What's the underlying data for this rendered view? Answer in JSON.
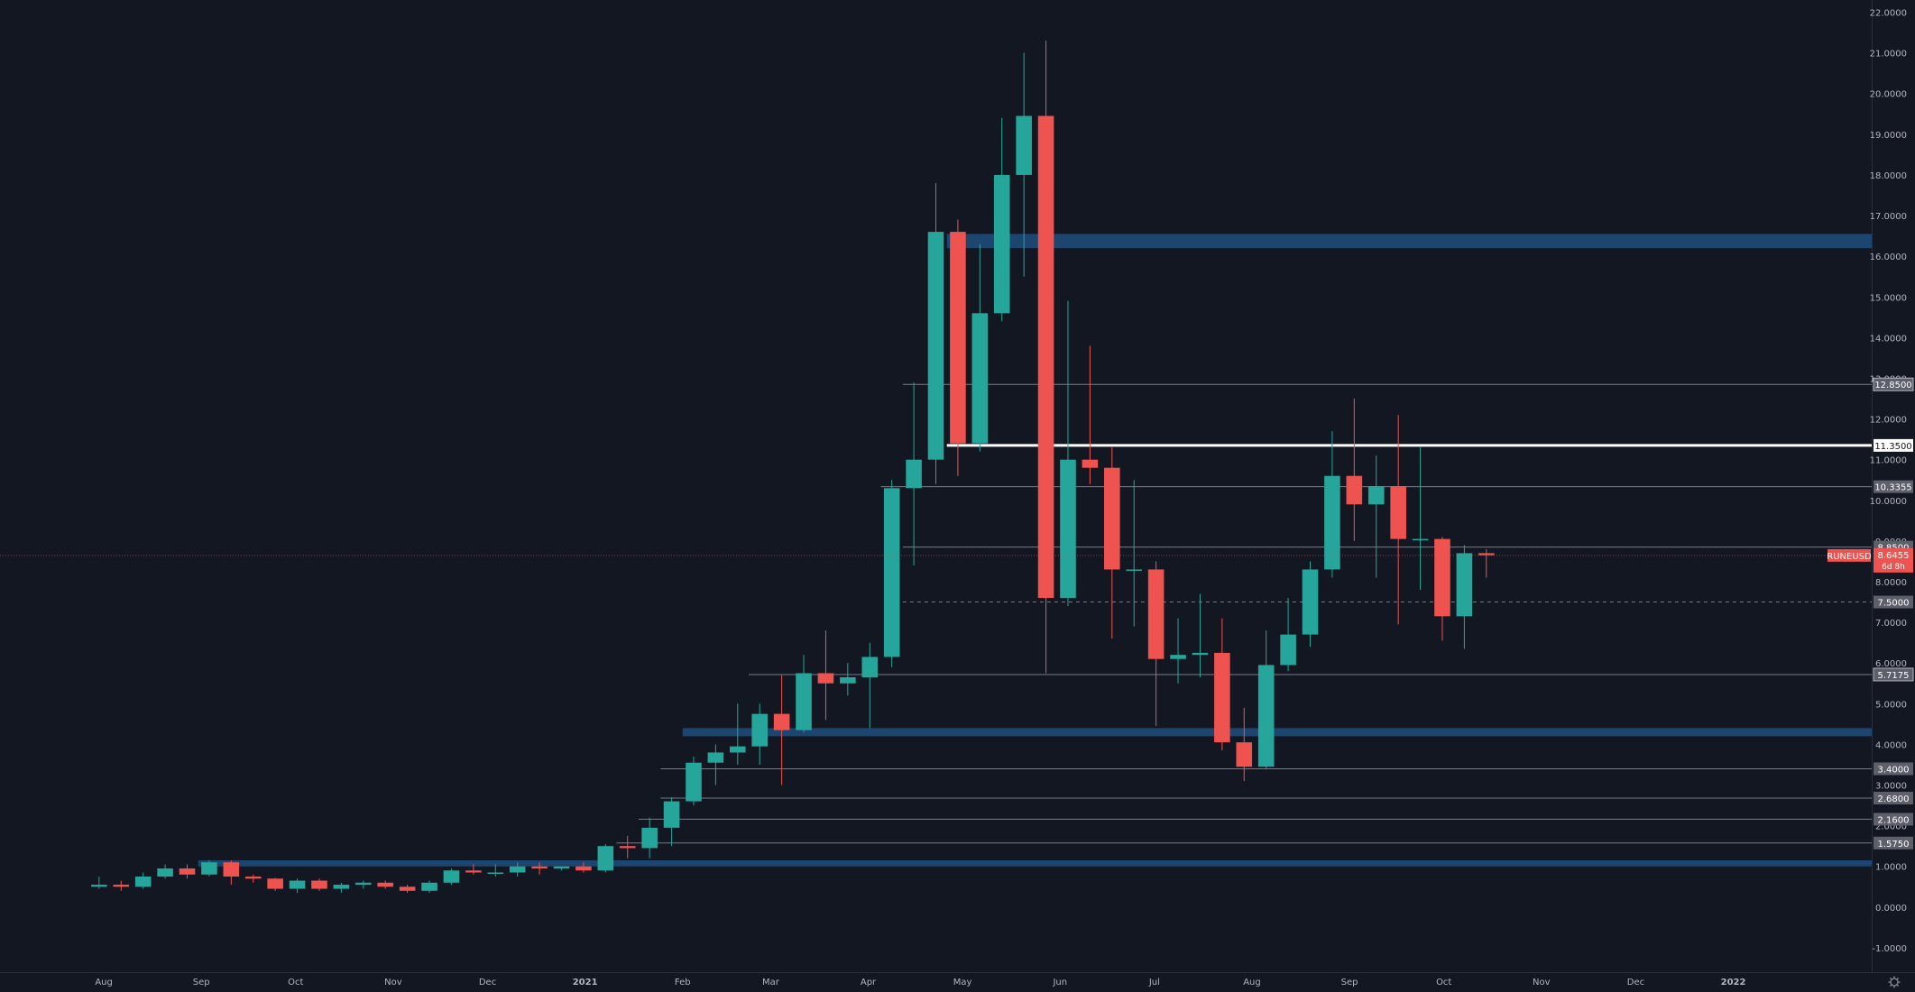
{
  "colors": {
    "background": "#131722",
    "up": "#26a69a",
    "down": "#ef5350",
    "zone": "#1f4e7d",
    "level_line": "#787b86",
    "key_level_line": "#ffffff",
    "axis_text": "#b2b5be",
    "axis_line": "#2a2e39",
    "label_bg": "#5d606b",
    "price_label": "#ef5350"
  },
  "price_axis": {
    "ticks": [
      "22.0000",
      "21.0000",
      "20.0000",
      "19.0000",
      "18.0000",
      "17.0000",
      "16.0000",
      "15.0000",
      "14.0000",
      "13.0000",
      "12.0000",
      "11.0000",
      "10.0000",
      "9.0000",
      "8.0000",
      "7.0000",
      "6.0000",
      "5.0000",
      "4.0000",
      "3.0000",
      "2.0000",
      "1.0000",
      "0.0000",
      "-1.0000"
    ]
  },
  "time_axis": {
    "labels": [
      {
        "text": "Aug",
        "date": "2020-08-01",
        "bold": false
      },
      {
        "text": "Sep",
        "date": "2020-09-01",
        "bold": false
      },
      {
        "text": "Oct",
        "date": "2020-10-01",
        "bold": false
      },
      {
        "text": "Nov",
        "date": "2020-11-01",
        "bold": false
      },
      {
        "text": "Dec",
        "date": "2020-12-01",
        "bold": false
      },
      {
        "text": "2021",
        "date": "2021-01-01",
        "bold": true
      },
      {
        "text": "Feb",
        "date": "2021-02-01",
        "bold": false
      },
      {
        "text": "Mar",
        "date": "2021-03-01",
        "bold": false
      },
      {
        "text": "Apr",
        "date": "2021-04-01",
        "bold": false
      },
      {
        "text": "May",
        "date": "2021-05-01",
        "bold": false
      },
      {
        "text": "Jun",
        "date": "2021-06-01",
        "bold": false
      },
      {
        "text": "Jul",
        "date": "2021-07-01",
        "bold": false
      },
      {
        "text": "Aug",
        "date": "2021-08-01",
        "bold": false
      },
      {
        "text": "Sep",
        "date": "2021-09-01",
        "bold": false
      },
      {
        "text": "Oct",
        "date": "2021-10-01",
        "bold": false
      },
      {
        "text": "Nov",
        "date": "2021-11-01",
        "bold": false
      },
      {
        "text": "Dec",
        "date": "2021-12-01",
        "bold": false
      },
      {
        "text": "2022",
        "date": "2022-01-01",
        "bold": true
      }
    ]
  },
  "current_price": {
    "symbol": "RUNEUSD",
    "price": "8.6455",
    "value": 8.6455,
    "countdown": "6d 8h"
  },
  "chart_data": {
    "type": "candlestick",
    "interval": "weekly",
    "ylim": [
      -1.6,
      22.3
    ],
    "xlim": [
      "2020-06-29",
      "2022-02-14"
    ],
    "candles": [
      {
        "date": "2020-07-27",
        "o": 0.5,
        "h": 0.75,
        "l": 0.45,
        "c": 0.55
      },
      {
        "date": "2020-08-03",
        "o": 0.55,
        "h": 0.65,
        "l": 0.4,
        "c": 0.5
      },
      {
        "date": "2020-08-10",
        "o": 0.5,
        "h": 0.85,
        "l": 0.45,
        "c": 0.75
      },
      {
        "date": "2020-08-17",
        "o": 0.75,
        "h": 1.05,
        "l": 0.7,
        "c": 0.95
      },
      {
        "date": "2020-08-24",
        "o": 0.95,
        "h": 1.05,
        "l": 0.7,
        "c": 0.8
      },
      {
        "date": "2020-08-31",
        "o": 0.8,
        "h": 1.15,
        "l": 0.75,
        "c": 1.1
      },
      {
        "date": "2020-09-07",
        "o": 1.1,
        "h": 1.15,
        "l": 0.55,
        "c": 0.75
      },
      {
        "date": "2020-09-14",
        "o": 0.75,
        "h": 0.8,
        "l": 0.6,
        "c": 0.7
      },
      {
        "date": "2020-09-21",
        "o": 0.7,
        "h": 0.72,
        "l": 0.4,
        "c": 0.45
      },
      {
        "date": "2020-09-28",
        "o": 0.45,
        "h": 0.7,
        "l": 0.35,
        "c": 0.65
      },
      {
        "date": "2020-10-05",
        "o": 0.65,
        "h": 0.7,
        "l": 0.4,
        "c": 0.45
      },
      {
        "date": "2020-10-12",
        "o": 0.45,
        "h": 0.6,
        "l": 0.35,
        "c": 0.55
      },
      {
        "date": "2020-10-19",
        "o": 0.55,
        "h": 0.65,
        "l": 0.45,
        "c": 0.6
      },
      {
        "date": "2020-10-26",
        "o": 0.6,
        "h": 0.65,
        "l": 0.45,
        "c": 0.5
      },
      {
        "date": "2020-11-02",
        "o": 0.5,
        "h": 0.55,
        "l": 0.35,
        "c": 0.4
      },
      {
        "date": "2020-11-09",
        "o": 0.4,
        "h": 0.65,
        "l": 0.35,
        "c": 0.6
      },
      {
        "date": "2020-11-16",
        "o": 0.6,
        "h": 0.95,
        "l": 0.55,
        "c": 0.9
      },
      {
        "date": "2020-11-23",
        "o": 0.9,
        "h": 1.05,
        "l": 0.8,
        "c": 0.85
      },
      {
        "date": "2020-11-30",
        "o": 0.85,
        "h": 1.05,
        "l": 0.75,
        "c": 0.85
      },
      {
        "date": "2020-12-07",
        "o": 0.85,
        "h": 1.1,
        "l": 0.75,
        "c": 1.0
      },
      {
        "date": "2020-12-14",
        "o": 1.0,
        "h": 1.1,
        "l": 0.8,
        "c": 0.95
      },
      {
        "date": "2020-12-21",
        "o": 0.95,
        "h": 1.0,
        "l": 0.9,
        "c": 1.0
      },
      {
        "date": "2020-12-28",
        "o": 1.0,
        "h": 1.1,
        "l": 0.85,
        "c": 0.9
      },
      {
        "date": "2021-01-04",
        "o": 0.9,
        "h": 1.55,
        "l": 0.85,
        "c": 1.5
      },
      {
        "date": "2021-01-11",
        "o": 1.5,
        "h": 1.75,
        "l": 1.2,
        "c": 1.45
      },
      {
        "date": "2021-01-18",
        "o": 1.45,
        "h": 2.2,
        "l": 1.2,
        "c": 1.95
      },
      {
        "date": "2021-01-25",
        "o": 1.95,
        "h": 2.7,
        "l": 1.5,
        "c": 2.6
      },
      {
        "date": "2021-02-01",
        "o": 2.6,
        "h": 3.7,
        "l": 2.5,
        "c": 3.55
      },
      {
        "date": "2021-02-08",
        "o": 3.55,
        "h": 4.0,
        "l": 3.0,
        "c": 3.8
      },
      {
        "date": "2021-02-15",
        "o": 3.8,
        "h": 5.0,
        "l": 3.5,
        "c": 3.95
      },
      {
        "date": "2021-02-22",
        "o": 3.95,
        "h": 5.0,
        "l": 3.5,
        "c": 4.75
      },
      {
        "date": "2021-03-01",
        "o": 4.75,
        "h": 5.7,
        "l": 3.0,
        "c": 4.35
      },
      {
        "date": "2021-03-08",
        "o": 4.35,
        "h": 6.2,
        "l": 4.3,
        "c": 5.75
      },
      {
        "date": "2021-03-15",
        "o": 5.75,
        "h": 6.8,
        "l": 4.6,
        "c": 5.5
      },
      {
        "date": "2021-03-22",
        "o": 5.5,
        "h": 6.0,
        "l": 5.2,
        "c": 5.65
      },
      {
        "date": "2021-03-29",
        "o": 5.65,
        "h": 6.5,
        "l": 4.4,
        "c": 6.15
      },
      {
        "date": "2021-04-05",
        "o": 6.15,
        "h": 10.5,
        "l": 5.9,
        "c": 10.3
      },
      {
        "date": "2021-04-12",
        "o": 10.3,
        "h": 12.9,
        "l": 8.4,
        "c": 11.0
      },
      {
        "date": "2021-04-19",
        "o": 11.0,
        "h": 17.8,
        "l": 10.4,
        "c": 16.6
      },
      {
        "date": "2021-04-26",
        "o": 16.6,
        "h": 16.9,
        "l": 10.6,
        "c": 11.4
      },
      {
        "date": "2021-05-03",
        "o": 11.4,
        "h": 16.3,
        "l": 11.2,
        "c": 14.6
      },
      {
        "date": "2021-05-10",
        "o": 14.6,
        "h": 19.4,
        "l": 14.4,
        "c": 18.0
      },
      {
        "date": "2021-05-17",
        "o": 18.0,
        "h": 21.0,
        "l": 15.5,
        "c": 19.45
      },
      {
        "date": "2021-05-24",
        "o": 19.45,
        "h": 21.3,
        "l": 5.75,
        "c": 7.6
      },
      {
        "date": "2021-05-31",
        "o": 7.6,
        "h": 14.9,
        "l": 7.4,
        "c": 11.0
      },
      {
        "date": "2021-06-07",
        "o": 11.0,
        "h": 13.8,
        "l": 10.4,
        "c": 10.8
      },
      {
        "date": "2021-06-14",
        "o": 10.8,
        "h": 11.3,
        "l": 6.6,
        "c": 8.3
      },
      {
        "date": "2021-06-21",
        "o": 8.3,
        "h": 10.5,
        "l": 6.9,
        "c": 8.3
      },
      {
        "date": "2021-06-28",
        "o": 8.3,
        "h": 8.5,
        "l": 4.45,
        "c": 6.1
      },
      {
        "date": "2021-07-05",
        "o": 6.1,
        "h": 7.1,
        "l": 5.5,
        "c": 6.2
      },
      {
        "date": "2021-07-12",
        "o": 6.2,
        "h": 7.7,
        "l": 5.65,
        "c": 6.25
      },
      {
        "date": "2021-07-19",
        "o": 6.25,
        "h": 7.1,
        "l": 3.85,
        "c": 4.05
      },
      {
        "date": "2021-07-26",
        "o": 4.05,
        "h": 4.9,
        "l": 3.1,
        "c": 3.45
      },
      {
        "date": "2021-08-02",
        "o": 3.45,
        "h": 6.8,
        "l": 3.4,
        "c": 5.95
      },
      {
        "date": "2021-08-09",
        "o": 5.95,
        "h": 7.6,
        "l": 5.8,
        "c": 6.7
      },
      {
        "date": "2021-08-16",
        "o": 6.7,
        "h": 8.5,
        "l": 6.4,
        "c": 8.3
      },
      {
        "date": "2021-08-23",
        "o": 8.3,
        "h": 11.7,
        "l": 8.1,
        "c": 10.6
      },
      {
        "date": "2021-08-30",
        "o": 10.6,
        "h": 12.5,
        "l": 9.0,
        "c": 9.9
      },
      {
        "date": "2021-09-06",
        "o": 9.9,
        "h": 11.1,
        "l": 8.1,
        "c": 10.35
      },
      {
        "date": "2021-09-13",
        "o": 10.35,
        "h": 12.1,
        "l": 6.95,
        "c": 9.05
      },
      {
        "date": "2021-09-20",
        "o": 9.05,
        "h": 11.3,
        "l": 7.8,
        "c": 9.05
      },
      {
        "date": "2021-09-27",
        "o": 9.05,
        "h": 9.1,
        "l": 6.55,
        "c": 7.15
      },
      {
        "date": "2021-10-04",
        "o": 7.15,
        "h": 8.9,
        "l": 6.35,
        "c": 8.7
      },
      {
        "date": "2021-10-11",
        "o": 8.7,
        "h": 8.8,
        "l": 8.1,
        "c": 8.65
      }
    ],
    "zones": [
      {
        "from": "2021-04-26",
        "to": "2022-02-14",
        "low": 16.2,
        "high": 16.55
      },
      {
        "from": "2021-02-01",
        "to": "2022-02-14",
        "low": 4.2,
        "high": 4.4
      },
      {
        "from": "2020-08-31",
        "to": "2022-02-14",
        "low": 1.0,
        "high": 1.15
      }
    ],
    "levels": [
      {
        "value": 12.85,
        "label": "12.8500",
        "from": "2021-04-12",
        "color": "#787b86",
        "width": 1,
        "dash": "",
        "bordered": true
      },
      {
        "value": 11.35,
        "label": "11.3500",
        "from": "2021-04-26",
        "color": "#ffffff",
        "width": 3,
        "dash": "",
        "bordered": false
      },
      {
        "value": 10.3355,
        "label": "10.3355",
        "from": "2021-04-05",
        "color": "#787b86",
        "width": 1,
        "dash": "",
        "bordered": false
      },
      {
        "value": 8.85,
        "label": "8.8500",
        "from": "2021-04-12",
        "color": "#787b86",
        "width": 1,
        "dash": "",
        "bordered": false
      },
      {
        "value": 7.5,
        "label": "7.5000",
        "from": "2021-04-12",
        "color": "#787b86",
        "width": 1,
        "dash": "4,4",
        "bordered": false
      },
      {
        "value": 5.7175,
        "label": "5.7175",
        "from": "2021-02-22",
        "color": "#787b86",
        "width": 1,
        "dash": "",
        "bordered": true
      },
      {
        "value": 3.4,
        "label": "3.4000",
        "from": "2021-01-25",
        "color": "#787b86",
        "width": 1,
        "dash": "",
        "bordered": false
      },
      {
        "value": 2.68,
        "label": "2.6800",
        "from": "2021-01-25",
        "color": "#787b86",
        "width": 1,
        "dash": "",
        "bordered": false
      },
      {
        "value": 2.16,
        "label": "2.1600",
        "from": "2021-01-18",
        "color": "#787b86",
        "width": 1,
        "dash": "",
        "bordered": false
      },
      {
        "value": 1.575,
        "label": "1.5750",
        "from": "2021-01-11",
        "color": "#787b86",
        "width": 1,
        "dash": "",
        "bordered": false
      }
    ]
  }
}
